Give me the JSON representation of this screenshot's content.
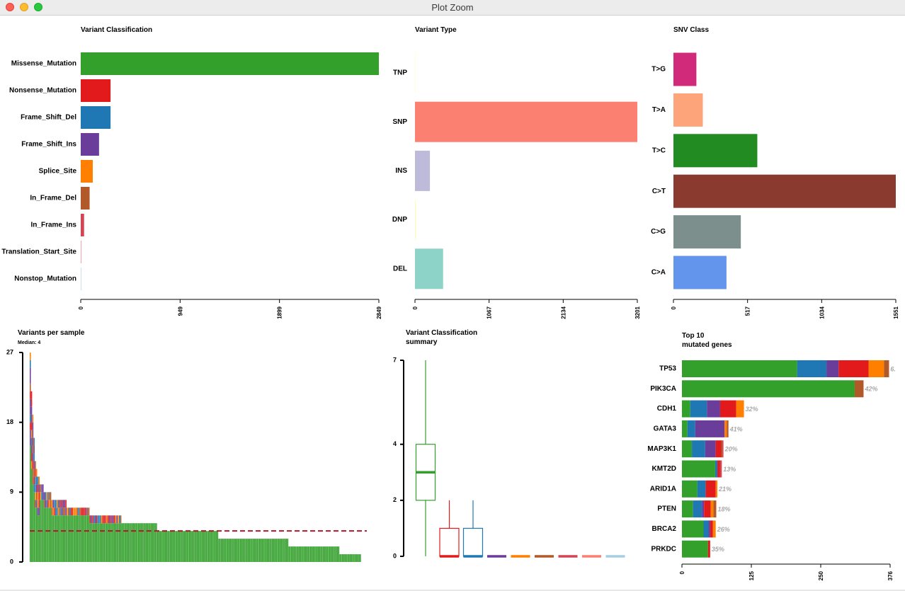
{
  "window": {
    "title": "Plot Zoom"
  },
  "colors": {
    "Missense_Mutation": "#33a02c",
    "Nonsense_Mutation": "#e31a1c",
    "Frame_Shift_Del": "#1f78b4",
    "Frame_Shift_Ins": "#6a3d9a",
    "Splice_Site": "#ff7f00",
    "In_Frame_Del": "#b15928",
    "In_Frame_Ins": "#d44553",
    "Translation_Start_Site": "#fb9a99",
    "Nonstop_Mutation": "#a6cee3",
    "median_line": "#b2182b"
  },
  "chart_data": [
    {
      "id": "variant_classification",
      "type": "bar",
      "orientation": "horizontal",
      "title": "Variant Classification",
      "categories": [
        "Missense_Mutation",
        "Nonsense_Mutation",
        "Frame_Shift_Del",
        "Frame_Shift_Ins",
        "Splice_Site",
        "In_Frame_Del",
        "In_Frame_Ins",
        "Translation_Start_Site",
        "Nonstop_Mutation"
      ],
      "values": [
        2849,
        285,
        285,
        175,
        115,
        85,
        32,
        6,
        3
      ],
      "colors": [
        "#33a02c",
        "#e31a1c",
        "#1f78b4",
        "#6a3d9a",
        "#ff7f00",
        "#b15928",
        "#d44553",
        "#fb9a99",
        "#a6cee3"
      ],
      "xlim": [
        0,
        2849
      ],
      "ticks": [
        "0",
        "949",
        "1899",
        "2849"
      ]
    },
    {
      "id": "variant_type",
      "type": "bar",
      "orientation": "horizontal",
      "title": "Variant Type",
      "categories": [
        "TNP",
        "SNP",
        "INS",
        "DNP",
        "DEL"
      ],
      "values": [
        6,
        3201,
        215,
        10,
        405
      ],
      "colors": [
        "#ffffb3",
        "#fb8072",
        "#bebada",
        "#ffffb3",
        "#8dd3c7"
      ],
      "xlim": [
        0,
        3201
      ],
      "ticks": [
        "0",
        "1067",
        "2134",
        "3201"
      ]
    },
    {
      "id": "snv_class",
      "type": "bar",
      "orientation": "horizontal",
      "title": "SNV Class",
      "categories": [
        "T>G",
        "T>A",
        "T>C",
        "C>T",
        "C>G",
        "C>A"
      ],
      "values": [
        160,
        205,
        585,
        1551,
        470,
        370
      ],
      "colors": [
        "#d12a7b",
        "#fda47b",
        "#228b22",
        "#8b3a30",
        "#7d8f8c",
        "#6495ed"
      ],
      "xlim": [
        0,
        1551
      ],
      "ticks": [
        "0",
        "517",
        "1034",
        "1551"
      ]
    },
    {
      "id": "variants_per_sample",
      "type": "bar",
      "title": "Variants per sample",
      "subtitle": "Median: 4",
      "ylim": [
        0,
        27
      ],
      "ticks": [
        "0",
        "9",
        "18",
        "27"
      ],
      "median": 4,
      "groups": [
        {
          "value": 27,
          "count": 1
        },
        {
          "value": 22,
          "count": 1
        },
        {
          "value": 19,
          "count": 1
        },
        {
          "value": 16,
          "count": 1
        },
        {
          "value": 13,
          "count": 1
        },
        {
          "value": 12,
          "count": 1
        },
        {
          "value": 11,
          "count": 2
        },
        {
          "value": 10,
          "count": 3
        },
        {
          "value": 9,
          "count": 6
        },
        {
          "value": 8,
          "count": 12
        },
        {
          "value": 7,
          "count": 18
        },
        {
          "value": 6,
          "count": 25
        },
        {
          "value": 5,
          "count": 28
        },
        {
          "value": 4,
          "count": 48
        },
        {
          "value": 3,
          "count": 55
        },
        {
          "value": 2,
          "count": 40
        },
        {
          "value": 1,
          "count": 17
        }
      ]
    },
    {
      "id": "variant_classification_summary",
      "type": "box",
      "title": "Variant Classification\nsummary",
      "ylim": [
        0,
        7
      ],
      "ticks": [
        "0",
        "2",
        "4",
        "7"
      ],
      "boxes": [
        {
          "name": "Missense_Mutation",
          "min": 0,
          "q1": 2,
          "median": 3,
          "q3": 4,
          "max": 7
        },
        {
          "name": "Nonsense_Mutation",
          "min": 0,
          "q1": 0,
          "median": 0,
          "q3": 1,
          "max": 2
        },
        {
          "name": "Frame_Shift_Del",
          "min": 0,
          "q1": 0,
          "median": 0,
          "q3": 1,
          "max": 2
        },
        {
          "name": "Frame_Shift_Ins",
          "min": 0,
          "q1": 0,
          "median": 0,
          "q3": 0,
          "max": 0
        },
        {
          "name": "Splice_Site",
          "min": 0,
          "q1": 0,
          "median": 0,
          "q3": 0,
          "max": 0
        },
        {
          "name": "In_Frame_Del",
          "min": 0,
          "q1": 0,
          "median": 0,
          "q3": 0,
          "max": 0
        },
        {
          "name": "In_Frame_Ins",
          "min": 0,
          "q1": 0,
          "median": 0,
          "q3": 0,
          "max": 0
        },
        {
          "name": "Translation_Start_Site",
          "min": 0,
          "q1": 0,
          "median": 0,
          "q3": 0,
          "max": 0
        },
        {
          "name": "Nonstop_Mutation",
          "min": 0,
          "q1": 0,
          "median": 0,
          "q3": 0,
          "max": 0
        }
      ]
    },
    {
      "id": "top10_genes",
      "type": "bar",
      "orientation": "horizontal",
      "stacked": true,
      "title": "Top 10\nmutated genes",
      "xlim": [
        0,
        376
      ],
      "ticks": [
        "0",
        "125",
        "250",
        "376"
      ],
      "series_names": [
        "Missense_Mutation",
        "Frame_Shift_Del",
        "Frame_Shift_Ins",
        "Nonsense_Mutation",
        "Splice_Site",
        "In_Frame_Del",
        "In_Frame_Ins"
      ],
      "genes": [
        {
          "gene": "TP53",
          "label": "6.",
          "values": [
            208,
            53,
            22,
            54,
            28,
            9,
            0
          ]
        },
        {
          "gene": "PIK3CA",
          "label": "42%",
          "values": [
            312,
            0,
            0,
            0,
            0,
            16,
            0
          ]
        },
        {
          "gene": "CDH1",
          "label": "32%",
          "values": [
            15,
            30,
            24,
            29,
            14,
            0,
            0
          ]
        },
        {
          "gene": "GATA3",
          "label": "41%",
          "values": [
            10,
            14,
            53,
            0,
            4,
            3,
            0
          ]
        },
        {
          "gene": "MAP3K1",
          "label": "20%",
          "values": [
            18,
            24,
            19,
            10,
            0,
            2,
            2
          ]
        },
        {
          "gene": "KMT2D",
          "label": "13%",
          "values": [
            60,
            4,
            0,
            5,
            0,
            0,
            3
          ]
        },
        {
          "gene": "ARID1A",
          "label": "21%",
          "values": [
            28,
            15,
            0,
            18,
            3,
            0,
            0
          ]
        },
        {
          "gene": "PTEN",
          "label": "18%",
          "values": [
            20,
            16,
            4,
            12,
            5,
            5,
            0
          ]
        },
        {
          "gene": "BRCA2",
          "label": "26%",
          "values": [
            39,
            9,
            3,
            5,
            5,
            0,
            0
          ]
        },
        {
          "gene": "PRKDC",
          "label": "35%",
          "values": [
            47,
            0,
            0,
            4,
            0,
            0,
            0
          ]
        }
      ]
    }
  ]
}
